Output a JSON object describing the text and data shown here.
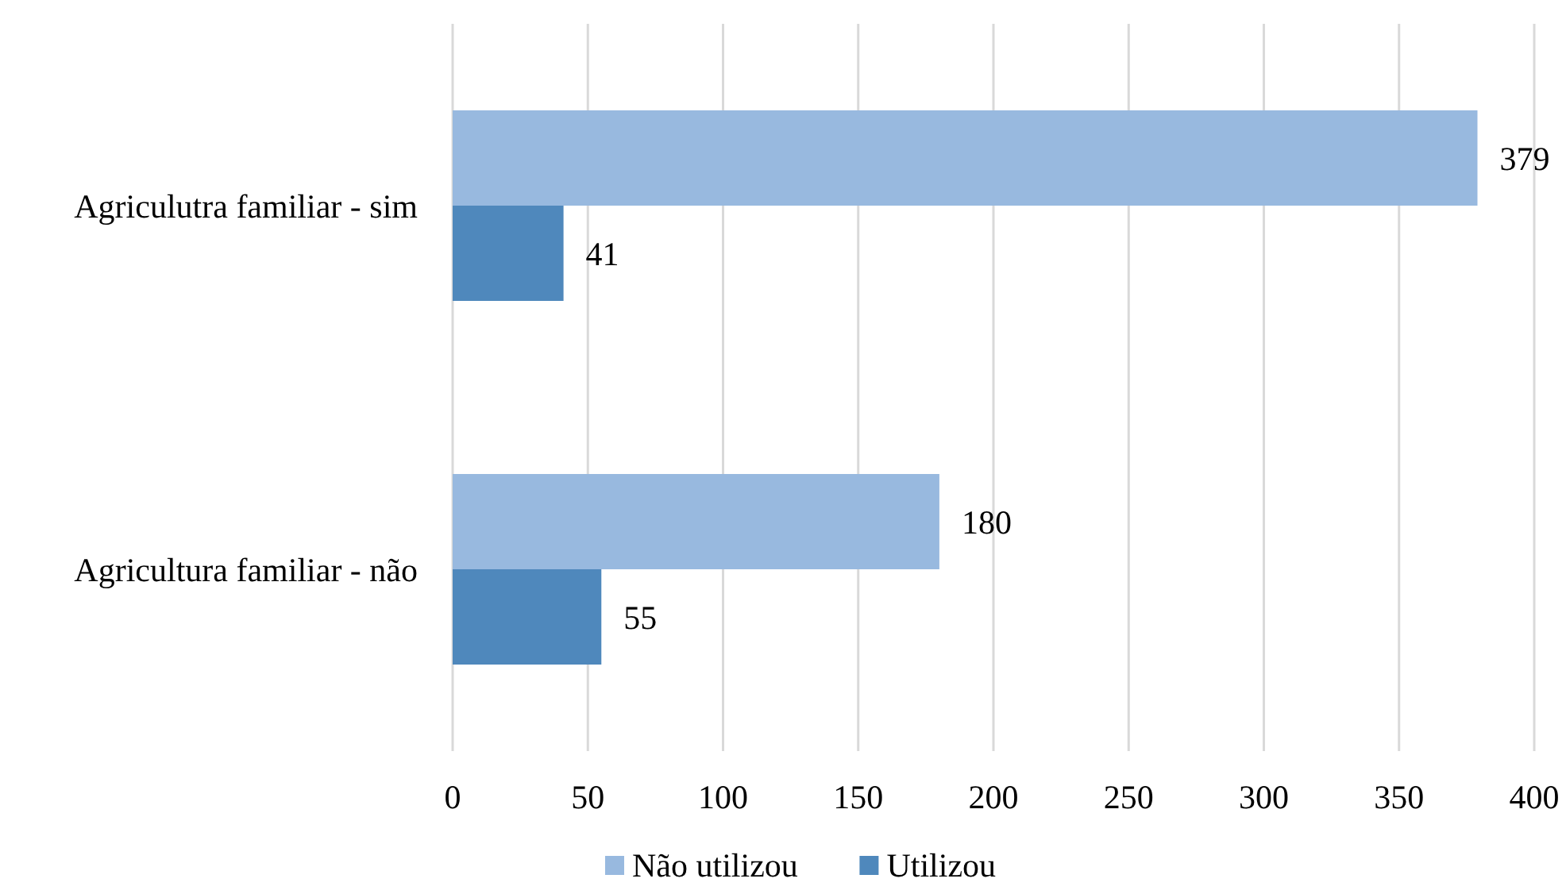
{
  "chart_data": {
    "type": "bar",
    "orientation": "horizontal",
    "categories": [
      "Agriculutra familiar - sim",
      "Agricultura familiar - não"
    ],
    "series": [
      {
        "name": "Não utilizou",
        "color": "#98b9df",
        "values": [
          379,
          180
        ]
      },
      {
        "name": "Utilizou",
        "color": "#4f88bc",
        "values": [
          41,
          55
        ]
      }
    ],
    "xlim": [
      0,
      400
    ],
    "xticks": [
      0,
      50,
      100,
      150,
      200,
      250,
      300,
      350,
      400
    ],
    "grid": "x",
    "legend": "bottom",
    "data_labels": true
  }
}
